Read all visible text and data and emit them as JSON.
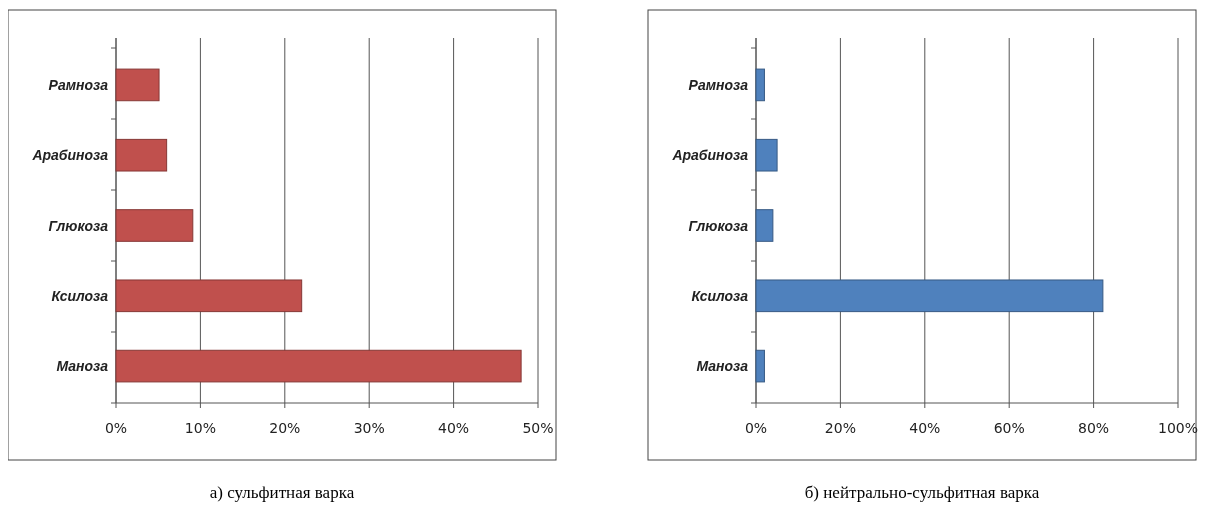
{
  "chart_data": [
    {
      "type": "bar",
      "orientation": "horizontal",
      "title": "а) сульфитная варка",
      "categories": [
        "Рамноза",
        "Арабиноза",
        "Глюкоза",
        "Ксилоза",
        "Маноза"
      ],
      "values": [
        5.1,
        6.0,
        9.1,
        22.0,
        48.0
      ],
      "color": "#c0504d",
      "xlim": [
        0,
        50
      ],
      "xticks": [
        {
          "value": 0,
          "label": "0%"
        },
        {
          "value": 10,
          "label": "10%"
        },
        {
          "value": 20,
          "label": "20%"
        },
        {
          "value": 30,
          "label": "30%"
        },
        {
          "value": 40,
          "label": "40%"
        },
        {
          "value": 50,
          "label": "50%"
        }
      ],
      "grid": "x"
    },
    {
      "type": "bar",
      "orientation": "horizontal",
      "title": "б) нейтрально-сульфитная варка",
      "categories": [
        "Рамноза",
        "Арабиноза",
        "Глюкоза",
        "Ксилоза",
        "Маноза"
      ],
      "values": [
        2.0,
        5.0,
        4.0,
        82.2,
        2.0
      ],
      "color": "#4f81bd",
      "xlim": [
        0,
        100
      ],
      "xticks": [
        {
          "value": 0,
          "label": "0%"
        },
        {
          "value": 20,
          "label": "20%"
        },
        {
          "value": 40,
          "label": "40%"
        },
        {
          "value": 60,
          "label": "60%"
        },
        {
          "value": 80,
          "label": "80%"
        },
        {
          "value": 100,
          "label": "100%"
        }
      ],
      "grid": "x"
    }
  ]
}
